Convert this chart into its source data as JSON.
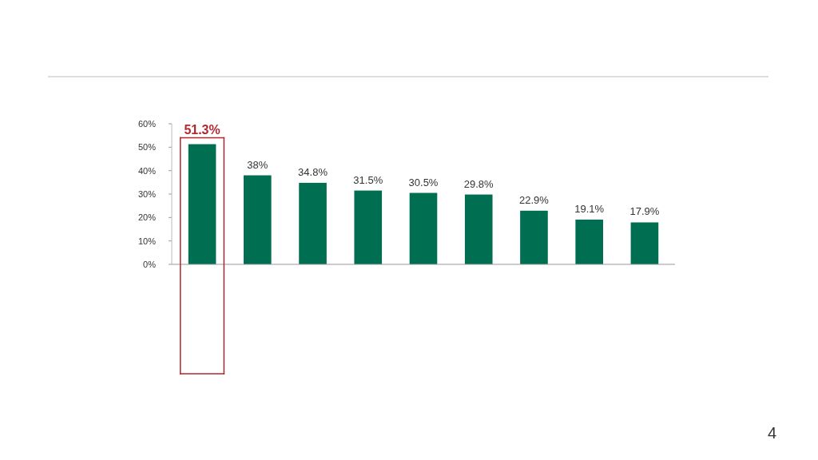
{
  "chart_data": {
    "type": "bar",
    "categories": [
      null,
      null,
      null,
      null,
      null,
      null,
      null,
      null,
      null
    ],
    "values": [
      51.3,
      38,
      34.8,
      31.5,
      30.5,
      29.8,
      22.9,
      19.1,
      17.9
    ],
    "value_labels": [
      "51.3%",
      "38%",
      "34.8%",
      "31.5%",
      "30.5%",
      "29.8%",
      "22.9%",
      "19.1%",
      "17.9%"
    ],
    "color": "#006e50",
    "ylim": [
      0,
      60
    ],
    "yticks": [
      {
        "value": 0,
        "label": "0%"
      },
      {
        "value": 10,
        "label": "10%"
      },
      {
        "value": 20,
        "label": "20%"
      },
      {
        "value": 30,
        "label": "30%"
      },
      {
        "value": 40,
        "label": "40%"
      },
      {
        "value": 50,
        "label": "50%"
      },
      {
        "value": 60,
        "label": "60%"
      }
    ],
    "grid": false,
    "annotations": [
      "4"
    ]
  }
}
